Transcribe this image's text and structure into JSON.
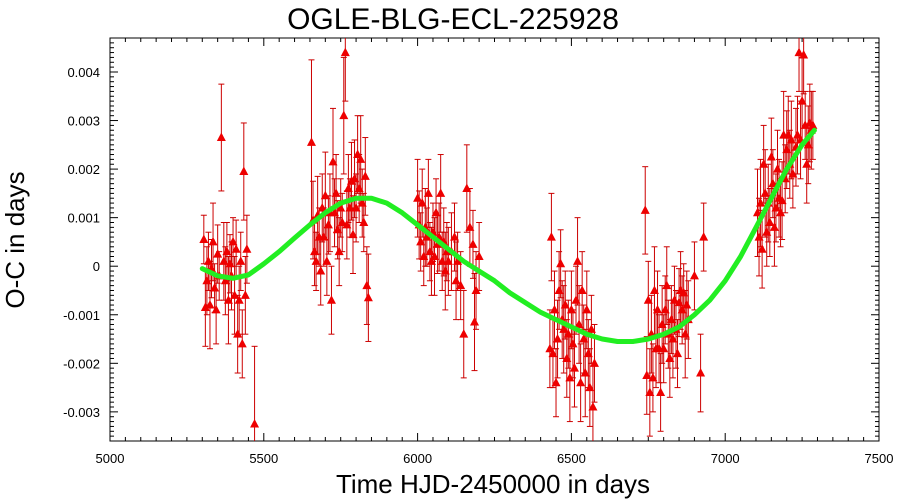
{
  "chart_data": {
    "type": "scatter",
    "title": "OGLE-BLG-ECL-225928",
    "xlabel": "Time HJD-2450000 in days",
    "ylabel": "O-C in days",
    "xlim": [
      5000,
      7500
    ],
    "ylim": [
      -0.0036,
      0.0047
    ],
    "x_ticks": [
      5000,
      5500,
      6000,
      6500,
      7000,
      7500
    ],
    "x_tick_labels": [
      "5000",
      "5500",
      "6000",
      "6500",
      "7000",
      "7500"
    ],
    "y_ticks": [
      -0.003,
      -0.002,
      -0.001,
      0,
      0.001,
      0.002,
      0.003,
      0.004
    ],
    "y_tick_labels": [
      "-0.003",
      "-0.002",
      "-0.001",
      "0",
      "0.001",
      "0.002",
      "0.003",
      "0.004"
    ],
    "grid": false,
    "colors": {
      "points": "#ee0000",
      "errorbars": "#cc0000",
      "fit": "#22ee22"
    },
    "series": [
      {
        "points": [
          [
            5305,
            0.00055,
            0.0005
          ],
          [
            5310,
            -0.00085,
            0.0008
          ],
          [
            5315,
            -0.0003,
            0.0007
          ],
          [
            5320,
            0.0001,
            0.0006
          ],
          [
            5325,
            -0.0008,
            0.0009
          ],
          [
            5330,
            -5e-05,
            0.0006
          ],
          [
            5335,
            0.0005,
            0.0008
          ],
          [
            5340,
            -0.00045,
            0.0005
          ],
          [
            5345,
            -0.0009,
            0.0007
          ],
          [
            5350,
            0.00025,
            0.0006
          ],
          [
            5355,
            -0.0002,
            0.0005
          ],
          [
            5362,
            0.00265,
            0.0011
          ],
          [
            5370,
            0.0001,
            0.0008
          ],
          [
            5375,
            -0.0003,
            0.0007
          ],
          [
            5380,
            0.0003,
            0.0006
          ],
          [
            5385,
            -0.0007,
            0.0009
          ],
          [
            5390,
            5e-05,
            0.0006
          ],
          [
            5395,
            -0.0002,
            0.0007
          ],
          [
            5400,
            0.0005,
            0.0005
          ],
          [
            5405,
            -0.0006,
            0.0008
          ],
          [
            5410,
            0.00035,
            0.0006
          ],
          [
            5415,
            -0.0014,
            0.0008
          ],
          [
            5420,
            -0.0007,
            0.0007
          ],
          [
            5425,
            0.0001,
            0.0006
          ],
          [
            5430,
            -0.0016,
            0.0007
          ],
          [
            5435,
            0.00195,
            0.001
          ],
          [
            5440,
            -0.0006,
            0.0008
          ],
          [
            5445,
            0.00035,
            0.0007
          ],
          [
            5470,
            -0.00325,
            0.0016
          ],
          [
            5655,
            0.00255,
            0.0017
          ],
          [
            5660,
            0.00095,
            0.0008
          ],
          [
            5665,
            0.0003,
            0.0007
          ],
          [
            5670,
            0.0001,
            0.0006
          ],
          [
            5675,
            0.00105,
            0.0008
          ],
          [
            5680,
            0.0006,
            0.0006
          ],
          [
            5685,
            -0.0001,
            0.0007
          ],
          [
            5690,
            0.0012,
            0.0007
          ],
          [
            5695,
            0.0006,
            0.0006
          ],
          [
            5700,
            0.00145,
            0.0009
          ],
          [
            5705,
            0.0001,
            0.0007
          ],
          [
            5710,
            0.00085,
            0.0006
          ],
          [
            5715,
            0.0011,
            0.0008
          ],
          [
            5720,
            -0.0007,
            0.0007
          ],
          [
            5725,
            0.00215,
            0.0011
          ],
          [
            5730,
            0.0011,
            0.0007
          ],
          [
            5735,
            0.0015,
            0.0008
          ],
          [
            5740,
            0.00075,
            0.0006
          ],
          [
            5745,
            0.0003,
            0.0007
          ],
          [
            5750,
            0.0012,
            0.0006
          ],
          [
            5755,
            0.0009,
            0.0006
          ],
          [
            5760,
            0.0031,
            0.0012
          ],
          [
            5765,
            0.0044,
            0.001
          ],
          [
            5770,
            0.00085,
            0.0007
          ],
          [
            5775,
            0.0016,
            0.0007
          ],
          [
            5780,
            0.0012,
            0.0006
          ],
          [
            5785,
            0.00175,
            0.0008
          ],
          [
            5790,
            0.00065,
            0.0008
          ],
          [
            5795,
            0.0018,
            0.0008
          ],
          [
            5800,
            0.0012,
            0.0007
          ],
          [
            5805,
            0.0023,
            0.0008
          ],
          [
            5810,
            0.0016,
            0.0007
          ],
          [
            5815,
            0.0022,
            0.0009
          ],
          [
            5820,
            0.0013,
            0.0007
          ],
          [
            5825,
            0.0009,
            0.0006
          ],
          [
            5830,
            0.00185,
            0.0008
          ],
          [
            5835,
            -0.0004,
            0.0008
          ],
          [
            5840,
            -0.00065,
            0.0009
          ],
          [
            6000,
            0.0014,
            0.0008
          ],
          [
            6005,
            0.00085,
            0.0007
          ],
          [
            6010,
            0.0005,
            0.0006
          ],
          [
            6015,
            0.0013,
            0.0007
          ],
          [
            6020,
            0.0002,
            0.0006
          ],
          [
            6025,
            0.0008,
            0.0008
          ],
          [
            6030,
            0.0006,
            0.0006
          ],
          [
            6035,
            0.0015,
            0.0007
          ],
          [
            6040,
            0.0003,
            0.0006
          ],
          [
            6045,
            0.0001,
            0.0007
          ],
          [
            6050,
            0.0007,
            0.0006
          ],
          [
            6055,
            0.0002,
            0.0008
          ],
          [
            6060,
            0.0011,
            0.0007
          ],
          [
            6065,
            0.00045,
            0.0006
          ],
          [
            6070,
            0.0006,
            0.0007
          ],
          [
            6075,
            0.0015,
            0.0008
          ],
          [
            6080,
            0.0001,
            0.0006
          ],
          [
            6085,
            0.0005,
            0.0007
          ],
          [
            6090,
            -0.0001,
            0.0008
          ],
          [
            6095,
            0.0003,
            0.0006
          ],
          [
            6100,
            0.0001,
            0.0007
          ],
          [
            6110,
            0.0003,
            0.0008
          ],
          [
            6120,
            0.0006,
            0.0007
          ],
          [
            6125,
            -0.0003,
            0.0008
          ],
          [
            6130,
            0.0001,
            0.0006
          ],
          [
            6140,
            -0.0004,
            0.0007
          ],
          [
            6150,
            -0.0014,
            0.0009
          ],
          [
            6160,
            0.0016,
            0.0009
          ],
          [
            6170,
            0.0008,
            0.0008
          ],
          [
            6180,
            0.00045,
            0.0007
          ],
          [
            6185,
            -0.00115,
            0.001
          ],
          [
            6190,
            -0.0005,
            0.0008
          ],
          [
            6200,
            0.0002,
            0.0007
          ],
          [
            6430,
            -0.0017,
            0.0008
          ],
          [
            6435,
            0.0006,
            0.0009
          ],
          [
            6440,
            -0.0018,
            0.0007
          ],
          [
            6445,
            -0.0009,
            0.0008
          ],
          [
            6450,
            -0.0024,
            0.0007
          ],
          [
            6455,
            -0.0015,
            0.0008
          ],
          [
            6460,
            -0.0005,
            0.0008
          ],
          [
            6465,
            5e-05,
            0.0007
          ],
          [
            6470,
            -0.0011,
            0.0008
          ],
          [
            6475,
            -0.0013,
            0.0009
          ],
          [
            6480,
            -0.0008,
            0.0007
          ],
          [
            6485,
            -0.0019,
            0.0008
          ],
          [
            6490,
            -0.0014,
            0.0007
          ],
          [
            6495,
            -0.0023,
            0.0009
          ],
          [
            6500,
            -0.0009,
            0.0008
          ],
          [
            6505,
            -0.0016,
            0.0007
          ],
          [
            6510,
            -0.0021,
            0.0008
          ],
          [
            6515,
            -0.0007,
            0.0007
          ],
          [
            6520,
            0.0001,
            0.0009
          ],
          [
            6525,
            -0.0012,
            0.0008
          ],
          [
            6530,
            -0.0024,
            0.0008
          ],
          [
            6535,
            -0.0005,
            0.0008
          ],
          [
            6540,
            -0.0015,
            0.0007
          ],
          [
            6545,
            -0.0022,
            0.0009
          ],
          [
            6550,
            -0.0009,
            0.0008
          ],
          [
            6555,
            -0.0018,
            0.0007
          ],
          [
            6560,
            -0.0025,
            0.0008
          ],
          [
            6565,
            -0.0013,
            0.0007
          ],
          [
            6570,
            -0.0029,
            0.0009
          ],
          [
            6575,
            -0.002,
            0.0008
          ],
          [
            6740,
            0.00115,
            0.0009
          ],
          [
            6745,
            -0.00225,
            0.0008
          ],
          [
            6750,
            -0.0007,
            0.0008
          ],
          [
            6755,
            -0.0026,
            0.0009
          ],
          [
            6760,
            -0.0014,
            0.0008
          ],
          [
            6765,
            -0.0023,
            0.0007
          ],
          [
            6770,
            -0.0005,
            0.0009
          ],
          [
            6775,
            -0.0017,
            0.0008
          ],
          [
            6780,
            -0.0009,
            0.0008
          ],
          [
            6785,
            -0.0017,
            0.0007
          ],
          [
            6790,
            -0.0026,
            0.0008
          ],
          [
            6795,
            -0.0012,
            0.0008
          ],
          [
            6800,
            -0.0017,
            0.0007
          ],
          [
            6805,
            -0.0009,
            0.0007
          ],
          [
            6810,
            -0.0004,
            0.0008
          ],
          [
            6815,
            -0.0014,
            0.0007
          ],
          [
            6820,
            -0.0019,
            0.0008
          ],
          [
            6825,
            -0.0011,
            0.0007
          ],
          [
            6830,
            -0.0015,
            0.0008
          ],
          [
            6835,
            -0.0007,
            0.0007
          ],
          [
            6840,
            -0.0013,
            0.0008
          ],
          [
            6845,
            -0.0018,
            0.0007
          ],
          [
            6850,
            -0.00075,
            0.0007
          ],
          [
            6855,
            -0.0005,
            0.0008
          ],
          [
            6860,
            -0.0009,
            0.0007
          ],
          [
            6865,
            -0.00055,
            0.0006
          ],
          [
            6870,
            -0.0014,
            0.0009
          ],
          [
            6875,
            -0.0008,
            0.0007
          ],
          [
            6880,
            -0.0011,
            0.0008
          ],
          [
            6900,
            -0.0002,
            0.0007
          ],
          [
            6920,
            -0.0022,
            0.0008
          ],
          [
            6930,
            0.0006,
            0.0007
          ],
          [
            7105,
            0.0011,
            0.0009
          ],
          [
            7110,
            0.0006,
            0.0008
          ],
          [
            7115,
            0.0013,
            0.0009
          ],
          [
            7120,
            0.00035,
            0.0008
          ],
          [
            7125,
            0.0021,
            0.0008
          ],
          [
            7130,
            0.0015,
            0.0009
          ],
          [
            7135,
            0.0007,
            0.0007
          ],
          [
            7140,
            0.0013,
            0.0008
          ],
          [
            7145,
            0.0009,
            0.0007
          ],
          [
            7150,
            0.00225,
            0.0008
          ],
          [
            7155,
            0.0017,
            0.0007
          ],
          [
            7160,
            0.0008,
            0.0008
          ],
          [
            7165,
            0.0012,
            0.0007
          ],
          [
            7170,
            0.002,
            0.0008
          ],
          [
            7175,
            0.0014,
            0.0008
          ],
          [
            7180,
            0.0011,
            0.0007
          ],
          [
            7185,
            0.00135,
            0.0008
          ],
          [
            7190,
            0.0027,
            0.0009
          ],
          [
            7195,
            0.0018,
            0.0007
          ],
          [
            7200,
            0.0024,
            0.0008
          ],
          [
            7205,
            0.0027,
            0.0008
          ],
          [
            7210,
            0.0021,
            0.0007
          ],
          [
            7215,
            0.0026,
            0.0008
          ],
          [
            7220,
            0.0019,
            0.0007
          ],
          [
            7230,
            0.00245,
            0.0008
          ],
          [
            7235,
            0.0027,
            0.0008
          ],
          [
            7240,
            0.0044,
            0.0008
          ],
          [
            7245,
            0.0026,
            0.0008
          ],
          [
            7250,
            0.0034,
            0.0009
          ],
          [
            7255,
            0.00435,
            0.0008
          ],
          [
            7260,
            0.0029,
            0.0007
          ],
          [
            7265,
            0.0021,
            0.0008
          ],
          [
            7270,
            0.0025,
            0.0008
          ],
          [
            7275,
            0.00295,
            0.0008
          ],
          [
            7280,
            0.0028,
            0.0008
          ],
          [
            7285,
            0.0029,
            0.0007
          ]
        ]
      },
      {
        "type": "line",
        "x": [
          5300,
          5350,
          5400,
          5450,
          5500,
          5550,
          5600,
          5650,
          5700,
          5750,
          5800,
          5850,
          5900,
          5950,
          6000,
          6050,
          6100,
          6150,
          6200,
          6250,
          6300,
          6350,
          6400,
          6450,
          6500,
          6550,
          6600,
          6650,
          6700,
          6750,
          6800,
          6850,
          6900,
          6950,
          7000,
          7050,
          7100,
          7150,
          7200,
          7250,
          7290
        ],
        "y": [
          -5e-05,
          -0.0002,
          -0.00025,
          -0.00018,
          5e-05,
          0.0003,
          0.00058,
          0.00085,
          0.0011,
          0.0013,
          0.0014,
          0.0014,
          0.0013,
          0.0011,
          0.00085,
          0.0006,
          0.00035,
          0.0001,
          -0.0001,
          -0.0003,
          -0.00055,
          -0.00075,
          -0.00095,
          -0.0011,
          -0.00125,
          -0.0014,
          -0.0015,
          -0.00155,
          -0.00155,
          -0.0015,
          -0.0014,
          -0.00125,
          -0.001,
          -0.0007,
          -0.0003,
          0.0002,
          0.0008,
          0.0014,
          0.002,
          0.0025,
          0.0028
        ]
      }
    ]
  }
}
